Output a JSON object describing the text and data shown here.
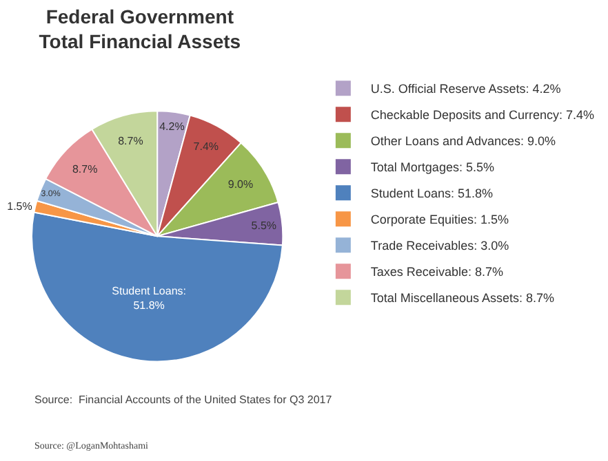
{
  "chart_data": {
    "type": "pie",
    "title": "Federal Government\nTotal Financial Assets",
    "categories": [
      "U.S. Official Reserve Assets: 4.2%",
      "Checkable Deposits and Currency: 7.4%",
      "Other Loans and Advances: 9.0%",
      "Total Mortgages: 5.5%",
      "Student Loans: 51.8%",
      "Corporate Equities: 1.5%",
      "Trade Receivables: 3.0%",
      "Taxes Receivable: 8.7%",
      "Total Miscellaneous Assets: 8.7%"
    ],
    "values": [
      4.2,
      7.4,
      9.0,
      5.5,
      51.8,
      1.5,
      3.0,
      8.7,
      8.7
    ],
    "value_labels": [
      "4.2%",
      "7.4%",
      "9.0%",
      "5.5%",
      "Student Loans:\n51.8%",
      "1.5%",
      "3.0%",
      "8.7%",
      "8.7%"
    ],
    "colors": [
      "#b3a2c7",
      "#c0504d",
      "#9bbb59",
      "#8064a2",
      "#4f81bd",
      "#f79646",
      "#95b3d7",
      "#e6959a",
      "#c3d69b"
    ],
    "legend": "right",
    "annotations": [
      "Source:  Financial Accounts of the United States for Q3 2017",
      "Source: @LoganMohtashami"
    ]
  }
}
